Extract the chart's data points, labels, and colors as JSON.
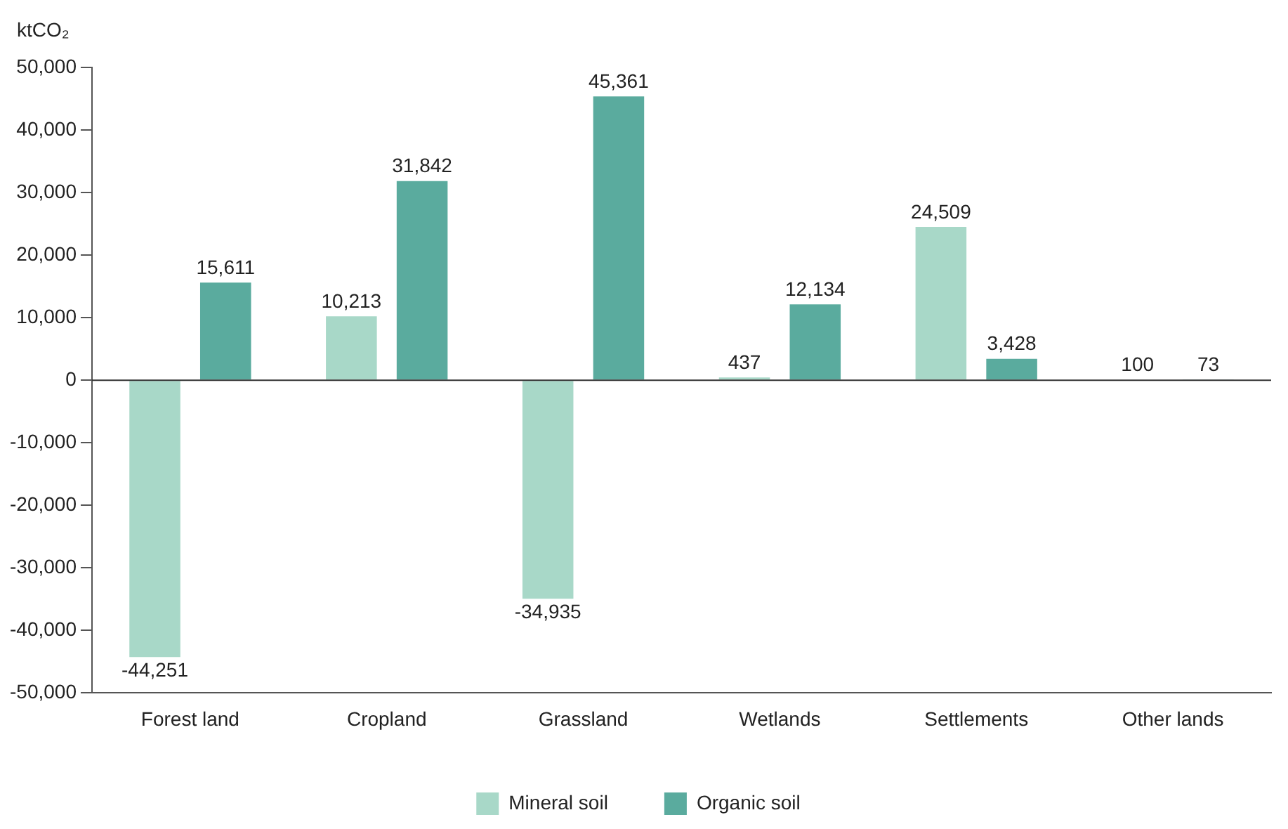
{
  "chart_data": {
    "type": "bar",
    "ylabel": "ktCO₂",
    "categories": [
      "Forest land",
      "Cropland",
      "Grassland",
      "Wetlands",
      "Settlements",
      "Other lands"
    ],
    "series": [
      {
        "name": "Mineral soil",
        "color": "#a8d8c8",
        "values": [
          -44251,
          10213,
          -34935,
          437,
          24509,
          100
        ],
        "value_labels": [
          "-44,251",
          "10,213",
          "-34,935",
          "437",
          "24,509",
          "100"
        ]
      },
      {
        "name": "Organic soil",
        "color": "#5aab9e",
        "values": [
          15611,
          31842,
          45361,
          12134,
          3428,
          73
        ],
        "value_labels": [
          "15,611",
          "31,842",
          "45,361",
          "12,134",
          "3,428",
          "73"
        ]
      }
    ],
    "ylim": [
      -50000,
      50000
    ],
    "yticks": [
      {
        "value": -50000,
        "label": "-50,000"
      },
      {
        "value": -40000,
        "label": "-40,000"
      },
      {
        "value": -30000,
        "label": "-30,000"
      },
      {
        "value": -20000,
        "label": "-20,000"
      },
      {
        "value": -10000,
        "label": "-10,000"
      },
      0,
      {
        "value": 10000,
        "label": "10,000"
      },
      {
        "value": 20000,
        "label": "20,000"
      },
      {
        "value": 30000,
        "label": "30,000"
      },
      {
        "value": 40000,
        "label": "40,000"
      },
      {
        "value": 50000,
        "label": "50,000"
      }
    ],
    "ref_lines": [
      {
        "axis": "y",
        "value": 0,
        "color": "#333333"
      }
    ],
    "grid": false,
    "legend": "bottom"
  }
}
